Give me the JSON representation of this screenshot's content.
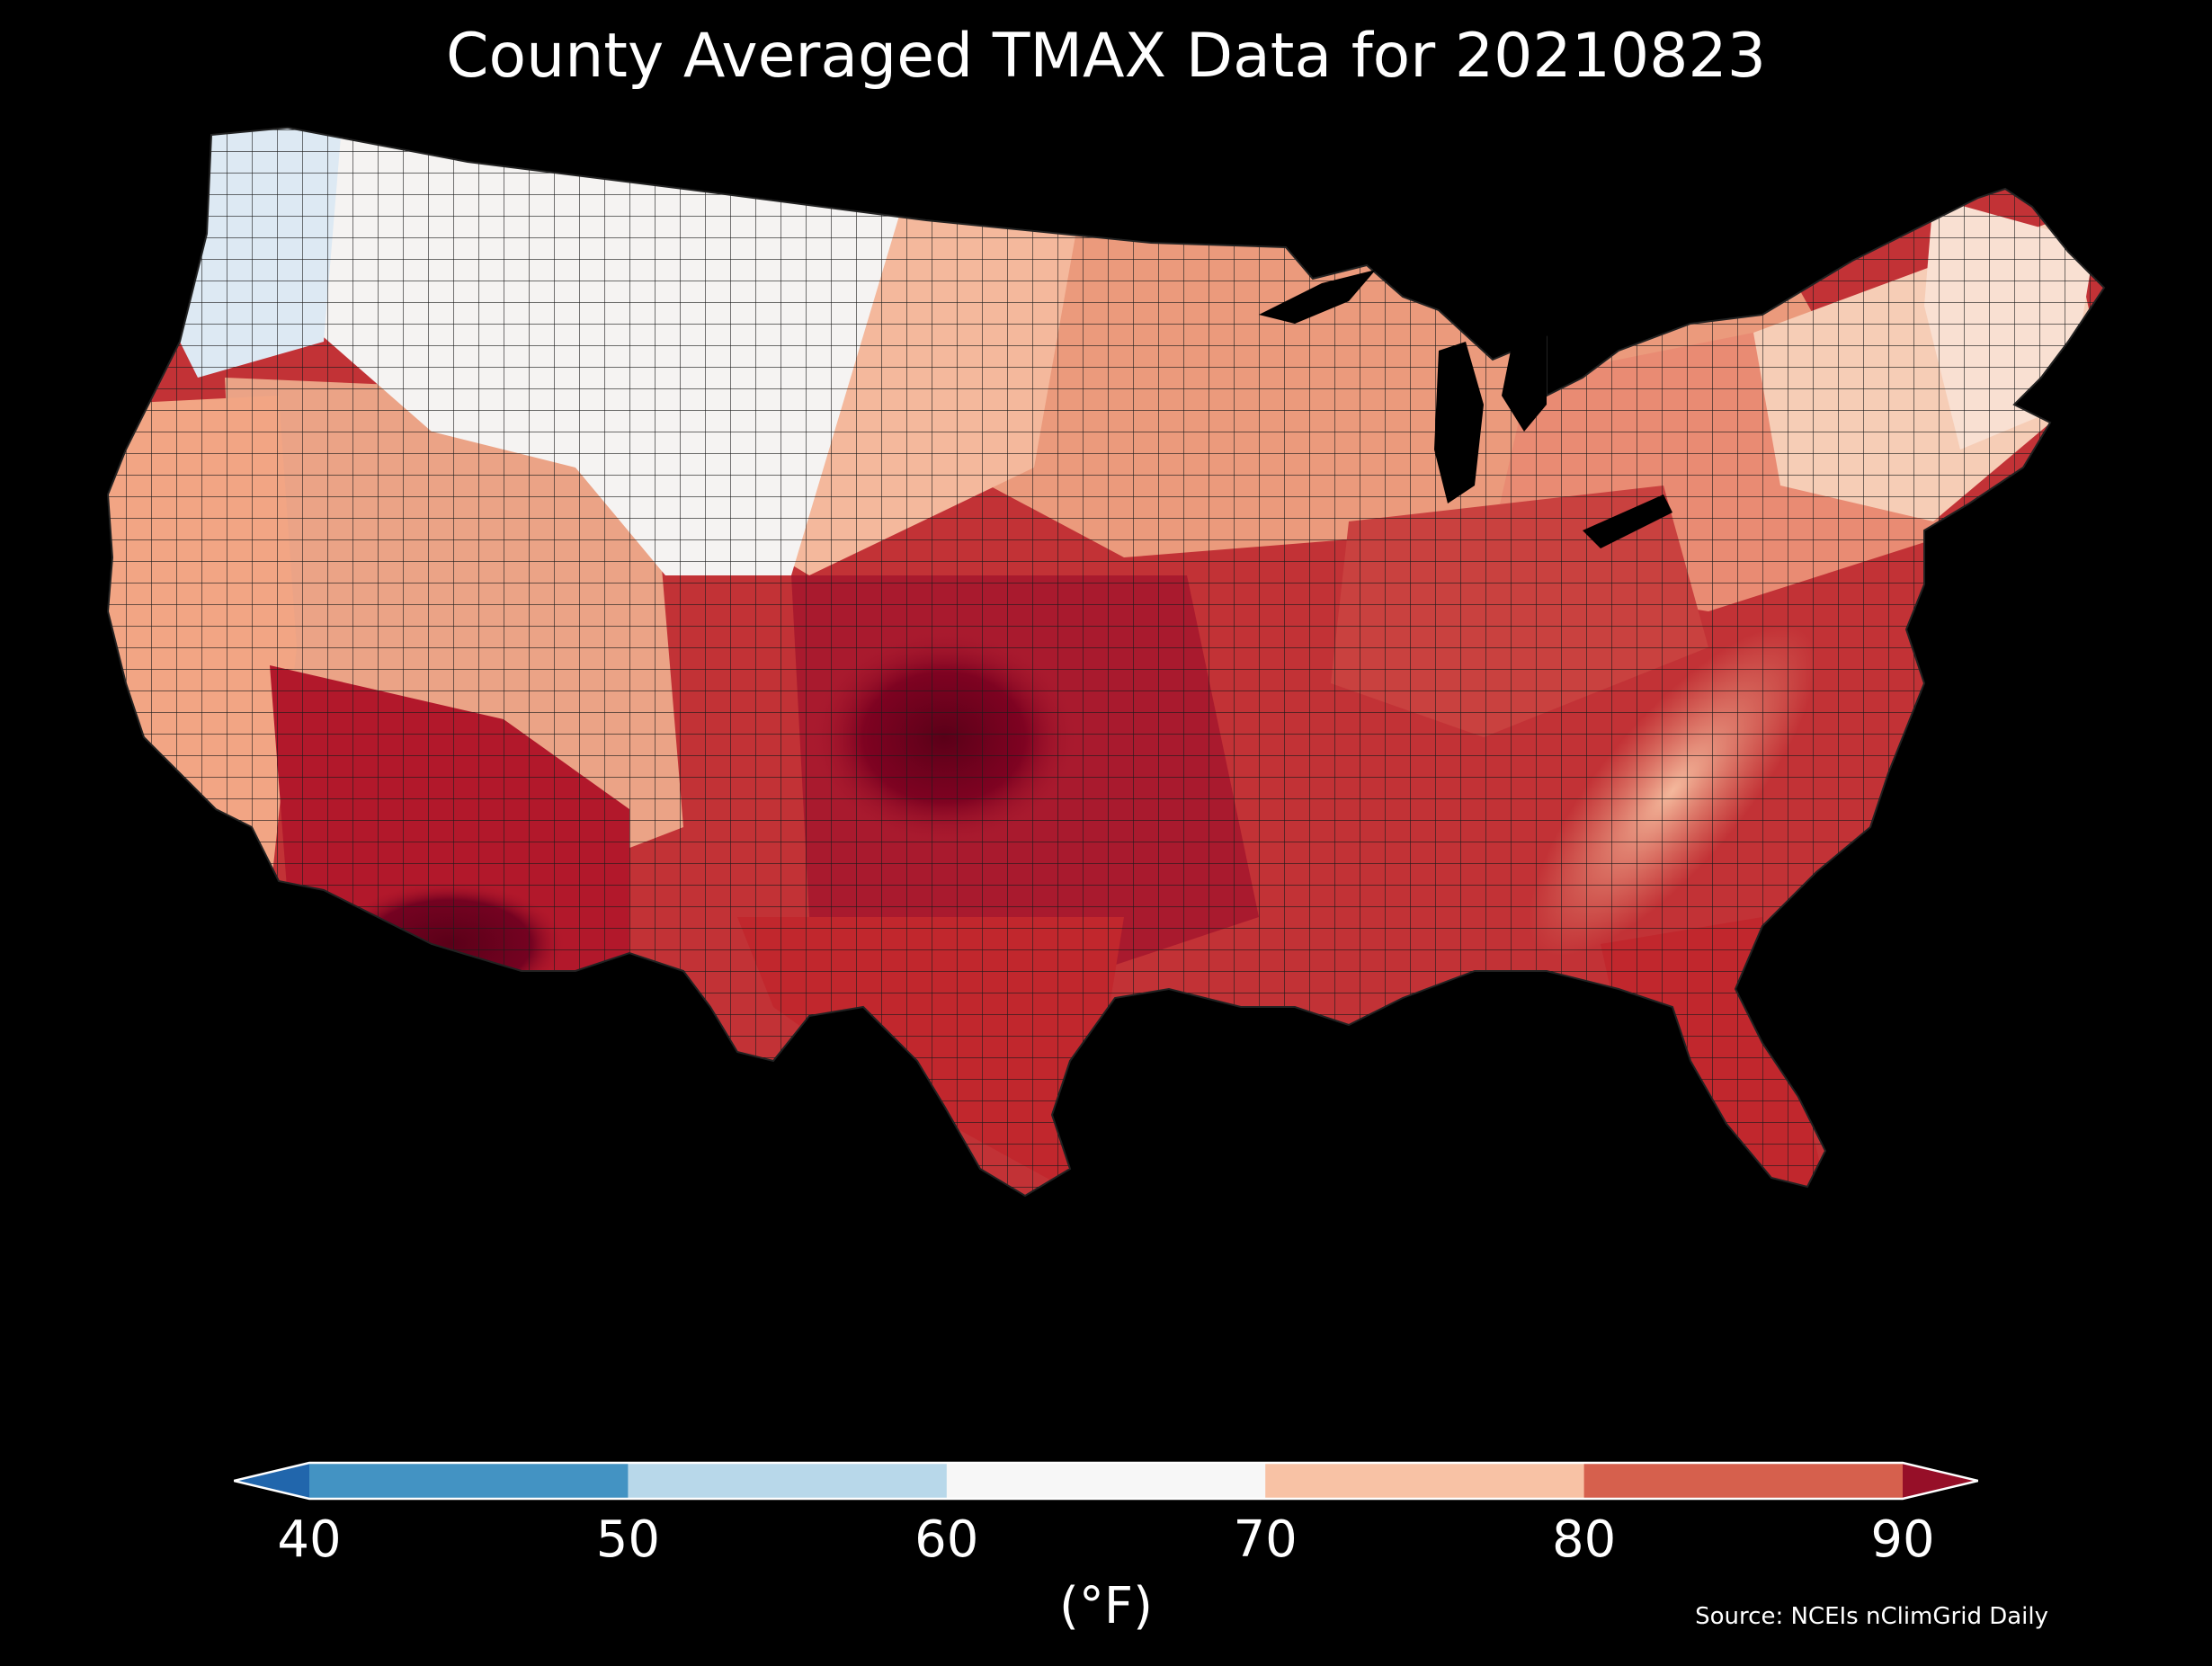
{
  "title": "County Averaged TMAX Data for 20210823",
  "colorbar": {
    "unit_label": "(°F)",
    "ticks": [
      "40",
      "50",
      "60",
      "70",
      "80",
      "90"
    ],
    "extend": "both",
    "bins": [
      {
        "from": "<40",
        "color": "#2166ac"
      },
      {
        "from": "40-50",
        "color": "#4393c3"
      },
      {
        "from": "50-60",
        "color": "#b8d8ea"
      },
      {
        "from": "60-70",
        "color": "#f7f7f7"
      },
      {
        "from": "70-80",
        "color": "#f8c2a5"
      },
      {
        "from": "80-90",
        "color": "#d6604d"
      },
      {
        "from": ">90",
        "color": "#960f28"
      }
    ]
  },
  "source": "Source: NCEIs nClimGrid Daily",
  "map": {
    "background": "#000000",
    "county_border_color": "#1a1a1a",
    "regions": [
      {
        "name": "pacific-northwest",
        "color": "#dde9f3"
      },
      {
        "name": "northern-rockies",
        "color": "#f5f3f2"
      },
      {
        "name": "northern-plains",
        "color": "#f4b89c"
      },
      {
        "name": "california-coast",
        "color": "#f2a584"
      },
      {
        "name": "great-basin",
        "color": "#eba386"
      },
      {
        "name": "desert-southwest",
        "color": "#b2182b"
      },
      {
        "name": "southern-plains",
        "color": "#a91a2e"
      },
      {
        "name": "texas-south",
        "color": "#c1272d"
      },
      {
        "name": "midwest",
        "color": "#eb9a7c"
      },
      {
        "name": "great-lakes-east",
        "color": "#e98b73"
      },
      {
        "name": "northeast",
        "color": "#f6cdb6"
      },
      {
        "name": "new-england",
        "color": "#f9e0d2"
      },
      {
        "name": "ohio-valley",
        "color": "#c9413f"
      },
      {
        "name": "appalachia",
        "color": "#f0a98c"
      },
      {
        "name": "southeast",
        "color": "#c23236"
      },
      {
        "name": "florida",
        "color": "#c1272d"
      },
      {
        "name": "hot-core-plains",
        "color": "#7a0020"
      },
      {
        "name": "hot-core-arizona",
        "color": "#6e0020"
      }
    ]
  }
}
